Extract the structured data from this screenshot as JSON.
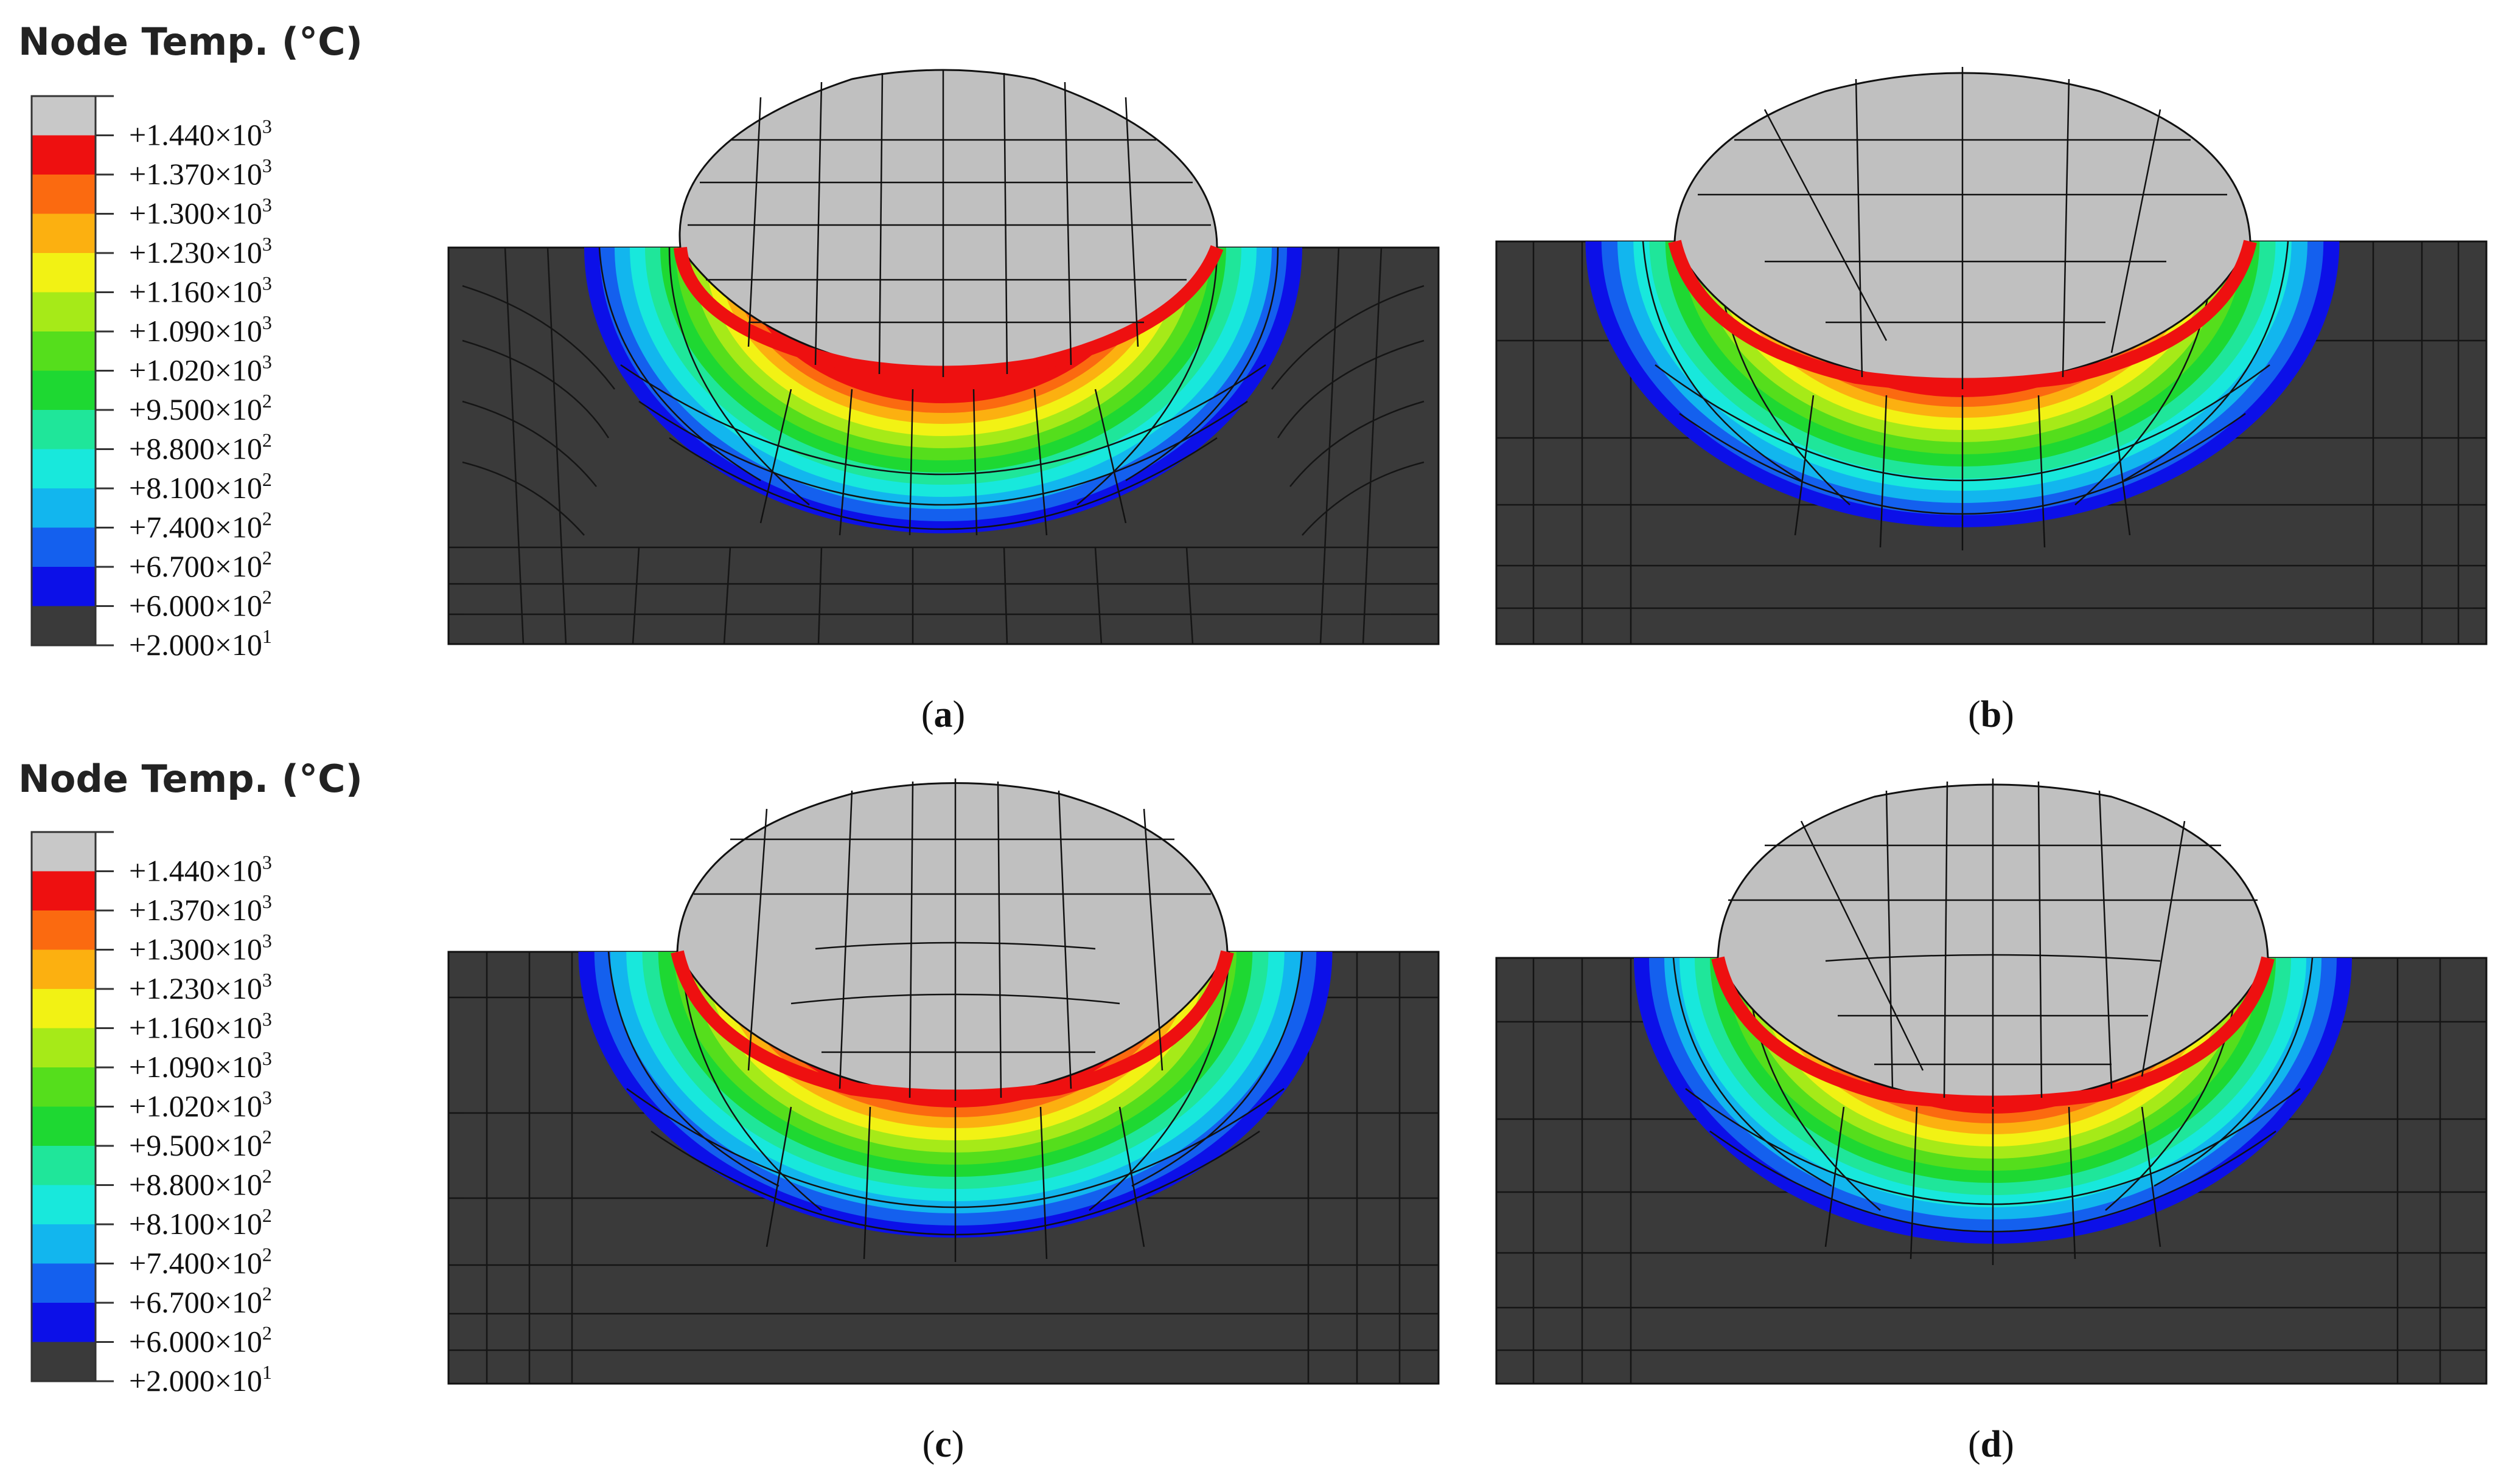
{
  "legend": {
    "title": "Node Temp. (°C)",
    "labels": [
      {
        "mantissa": "+1.440×10",
        "exp": "3"
      },
      {
        "mantissa": "+1.370×10",
        "exp": "3"
      },
      {
        "mantissa": "+1.300×10",
        "exp": "3"
      },
      {
        "mantissa": "+1.230×10",
        "exp": "3"
      },
      {
        "mantissa": "+1.160×10",
        "exp": "3"
      },
      {
        "mantissa": "+1.090×10",
        "exp": "3"
      },
      {
        "mantissa": "+1.020×10",
        "exp": "3"
      },
      {
        "mantissa": "+9.500×10",
        "exp": "2"
      },
      {
        "mantissa": "+8.800×10",
        "exp": "2"
      },
      {
        "mantissa": "+8.100×10",
        "exp": "2"
      },
      {
        "mantissa": "+7.400×10",
        "exp": "2"
      },
      {
        "mantissa": "+6.700×10",
        "exp": "2"
      },
      {
        "mantissa": "+6.000×10",
        "exp": "2"
      },
      {
        "mantissa": "+2.000×10",
        "exp": "1"
      }
    ],
    "bands": [
      "#c8c8c8",
      "#ee1010",
      "#fb6a10",
      "#fcb010",
      "#f2f214",
      "#a6ea18",
      "#55de1c",
      "#1ed832",
      "#1fe69a",
      "#18e8dc",
      "#12b6ee",
      "#1460ee",
      "#0c10e8",
      "#3a3a3a"
    ]
  },
  "panels": [
    {
      "label": "a"
    },
    {
      "label": "b"
    },
    {
      "label": "c"
    },
    {
      "label": "d"
    }
  ]
}
